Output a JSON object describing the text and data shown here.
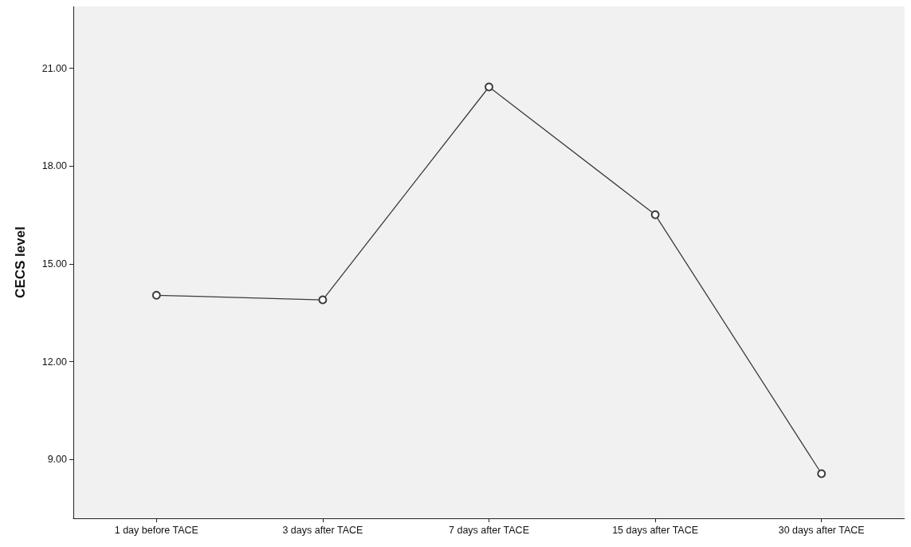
{
  "chart_data": {
    "type": "line",
    "ylabel": "CECS level",
    "categories": [
      "1 day before TACE",
      "3 days after TACE",
      "7 days after TACE",
      "15 days after TACE",
      "30 days after TACE"
    ],
    "series": [
      {
        "color": "#3c3c3c",
        "values": [
          14.04,
          13.9,
          20.43,
          16.51,
          8.57
        ]
      }
    ],
    "ylim": [
      7.2,
      22.9
    ],
    "yticks": [
      {
        "value": 9,
        "label": "9.00"
      },
      {
        "value": 12,
        "label": "12.00"
      },
      {
        "value": 15,
        "label": "15.00"
      },
      {
        "value": 18,
        "label": "18.00"
      },
      {
        "value": 21,
        "label": "21.00"
      }
    ],
    "grid": false,
    "marker": "circle",
    "line_style": "solid"
  }
}
